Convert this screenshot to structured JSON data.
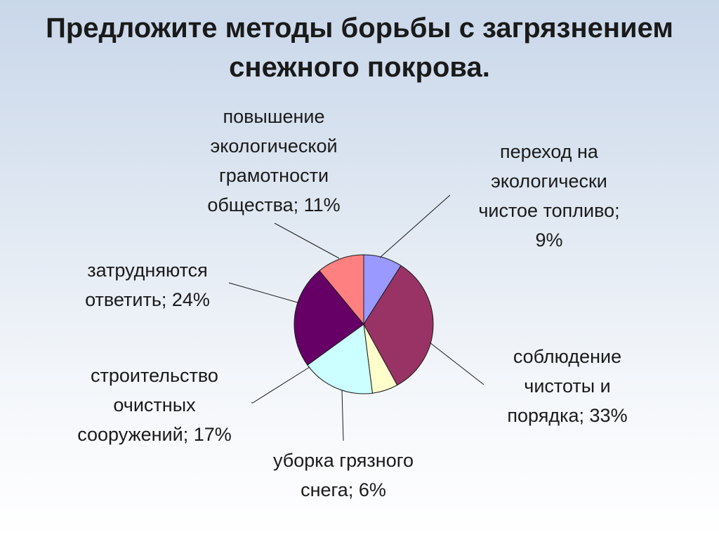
{
  "slide": {
    "title_line1": "Предложите методы борьбы с загрязнением",
    "title_line2": "снежного покрова."
  },
  "chart_data": {
    "type": "pie",
    "title": "",
    "slices": [
      {
        "category": "переход на экологически чистое топливо",
        "value": 9,
        "color": "#9999ff",
        "label_lines": [
          "переход на",
          "экологически",
          "чистое топливо;",
          "9%"
        ]
      },
      {
        "category": "соблюдение чистоты и порядка",
        "value": 33,
        "color": "#993366",
        "label_lines": [
          "соблюдение",
          "чистоты и",
          "порядка; 33%"
        ]
      },
      {
        "category": "уборка грязного снега",
        "value": 6,
        "color": "#ffffcc",
        "label_lines": [
          "уборка грязного",
          "снега; 6%"
        ]
      },
      {
        "category": "строительство очистных сооружений",
        "value": 17,
        "color": "#ccffff",
        "label_lines": [
          "строительство",
          "очистных",
          "сооружений; 17%"
        ]
      },
      {
        "category": "затрудняются ответить",
        "value": 24,
        "color": "#660066",
        "label_lines": [
          "затрудняются",
          "ответить; 24%"
        ]
      },
      {
        "category": "повышение экологической грамотности общества",
        "value": 11,
        "color": "#ff8080",
        "label_lines": [
          "повышение",
          "экологической",
          "грамотности",
          "общества; 11%"
        ]
      }
    ],
    "start_angle": "12 o'clock",
    "direction": "clockwise",
    "legend": "none",
    "data_labels": "category; percent"
  }
}
